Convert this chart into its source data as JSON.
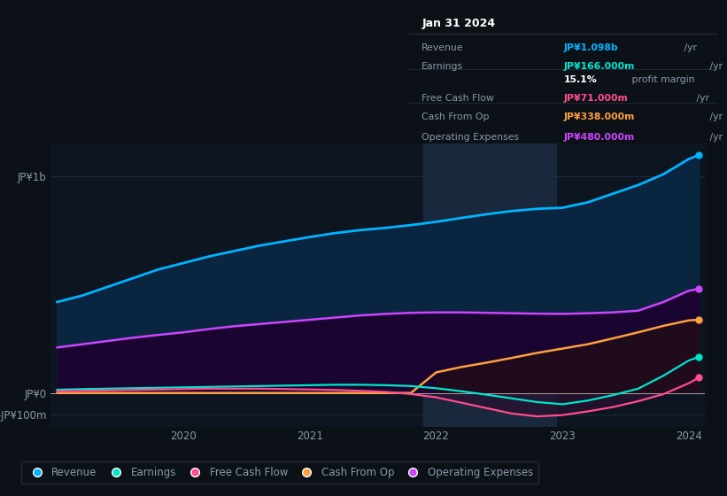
{
  "bg_color": "#0c1117",
  "plot_bg_color": "#0d1520",
  "title": "Jan 31 2024",
  "x": [
    2019.0,
    2019.2,
    2019.4,
    2019.6,
    2019.8,
    2020.0,
    2020.2,
    2020.4,
    2020.6,
    2020.8,
    2021.0,
    2021.2,
    2021.4,
    2021.6,
    2021.8,
    2022.0,
    2022.2,
    2022.4,
    2022.6,
    2022.8,
    2023.0,
    2023.2,
    2023.4,
    2023.6,
    2023.8,
    2024.0,
    2024.08
  ],
  "revenue": [
    420,
    450,
    490,
    530,
    570,
    600,
    630,
    655,
    680,
    700,
    720,
    738,
    752,
    762,
    775,
    790,
    808,
    825,
    840,
    850,
    855,
    880,
    920,
    960,
    1010,
    1080,
    1098
  ],
  "operating_expenses": [
    210,
    225,
    240,
    255,
    268,
    280,
    295,
    308,
    318,
    328,
    338,
    348,
    358,
    365,
    370,
    372,
    372,
    370,
    368,
    366,
    365,
    368,
    372,
    380,
    420,
    472,
    480
  ],
  "earnings": [
    15,
    18,
    20,
    22,
    24,
    26,
    28,
    30,
    32,
    34,
    36,
    38,
    38,
    36,
    32,
    22,
    8,
    -8,
    -25,
    -42,
    -52,
    -35,
    -10,
    20,
    80,
    150,
    166
  ],
  "free_cash_flow": [
    8,
    10,
    12,
    14,
    16,
    18,
    20,
    20,
    20,
    18,
    16,
    14,
    10,
    5,
    -5,
    -20,
    -45,
    -70,
    -95,
    -108,
    -102,
    -85,
    -65,
    -38,
    -5,
    45,
    71
  ],
  "cash_from_op": [
    0,
    0,
    0,
    0,
    0,
    0,
    0,
    0,
    0,
    0,
    0,
    0,
    0,
    0,
    0,
    95,
    120,
    140,
    162,
    185,
    205,
    225,
    252,
    280,
    310,
    335,
    338
  ],
  "highlight_x_start": 2021.9,
  "highlight_x_end": 2022.95,
  "ylim_min": -155,
  "ylim_max": 1150,
  "yticks_pos": [
    -100,
    0,
    1000
  ],
  "ytick_labels": [
    "-JP¥100m",
    "JP¥0",
    "JP¥1b"
  ],
  "xtick_positions": [
    2020.0,
    2021.0,
    2022.0,
    2023.0,
    2024.0
  ],
  "xtick_labels": [
    "2020",
    "2021",
    "2022",
    "2023",
    "2024"
  ],
  "revenue_color": "#00b4ff",
  "earnings_color": "#00e5cc",
  "free_cash_flow_color": "#ff4d8f",
  "cash_from_op_color": "#ffa040",
  "operating_expenses_color": "#cc44ff",
  "revenue_fill": "#0a2540",
  "operating_expenses_fill": "#1a0530",
  "highlight_fill": "#1e2d45",
  "grid_color": "#1e2d40",
  "text_color": "#8899aa",
  "info_bg": "#080d12",
  "info_border": "#2a3040",
  "info_rows": [
    {
      "label": "Revenue",
      "value": "JP¥1.098b",
      "unit": " /yr",
      "value_color": "#00b4ff"
    },
    {
      "label": "Earnings",
      "value": "JP¥166.000m",
      "unit": " /yr",
      "value_color": "#00e5cc"
    },
    {
      "label": "",
      "value": "15.1%",
      "unit": " profit margin",
      "value_color": "#ffffff"
    },
    {
      "label": "Free Cash Flow",
      "value": "JP¥71.000m",
      "unit": " /yr",
      "value_color": "#ff4d8f"
    },
    {
      "label": "Cash From Op",
      "value": "JP¥338.000m",
      "unit": " /yr",
      "value_color": "#ffa040"
    },
    {
      "label": "Operating Expenses",
      "value": "JP¥480.000m",
      "unit": " /yr",
      "value_color": "#cc44ff"
    }
  ],
  "legend_items": [
    {
      "label": "Revenue",
      "color": "#00b4ff"
    },
    {
      "label": "Earnings",
      "color": "#00e5cc"
    },
    {
      "label": "Free Cash Flow",
      "color": "#ff4d8f"
    },
    {
      "label": "Cash From Op",
      "color": "#ffa040"
    },
    {
      "label": "Operating Expenses",
      "color": "#cc44ff"
    }
  ]
}
